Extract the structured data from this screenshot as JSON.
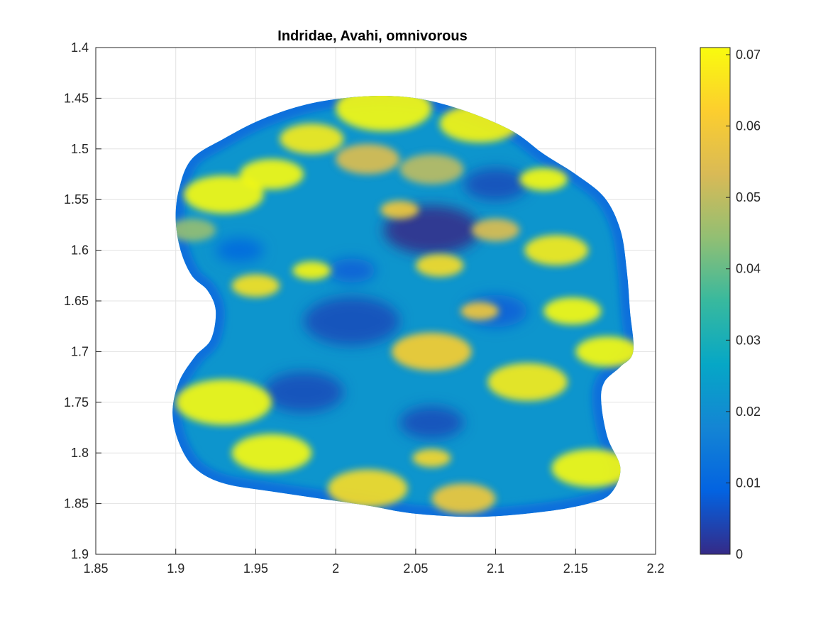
{
  "chart_data": {
    "type": "heatmap",
    "title": "Indridae, Avahi, omnivorous",
    "xlabel": "",
    "ylabel": "",
    "xlim": [
      1.85,
      2.2
    ],
    "ylim": [
      1.4,
      1.9
    ],
    "y_reversed": true,
    "grid": true,
    "x_ticks": [
      "1.85",
      "1.9",
      "1.95",
      "2",
      "2.05",
      "2.1",
      "2.15",
      "2.2"
    ],
    "y_ticks": [
      "1.4",
      "1.45",
      "1.5",
      "1.55",
      "1.6",
      "1.65",
      "1.7",
      "1.75",
      "1.8",
      "1.85",
      "1.9"
    ],
    "colorbar": {
      "limits": [
        0,
        0.071
      ],
      "ticks": [
        "0",
        "0.01",
        "0.02",
        "0.03",
        "0.04",
        "0.05",
        "0.06",
        "0.07"
      ],
      "colormap": "parula",
      "stops": [
        "#352a87",
        "#0363e1",
        "#1485d4",
        "#06a7c6",
        "#38b99e",
        "#92bf73",
        "#d9ba56",
        "#fcce2e",
        "#f9fb0e"
      ]
    },
    "surface_outline": [
      [
        1.9,
        1.57
      ],
      [
        1.902,
        1.54
      ],
      [
        1.91,
        1.51
      ],
      [
        1.93,
        1.49
      ],
      [
        1.955,
        1.47
      ],
      [
        1.985,
        1.455
      ],
      [
        2.02,
        1.448
      ],
      [
        2.05,
        1.45
      ],
      [
        2.08,
        1.462
      ],
      [
        2.11,
        1.482
      ],
      [
        2.13,
        1.505
      ],
      [
        2.15,
        1.525
      ],
      [
        2.168,
        1.548
      ],
      [
        2.178,
        1.58
      ],
      [
        2.182,
        1.62
      ],
      [
        2.184,
        1.66
      ],
      [
        2.186,
        1.7
      ],
      [
        2.178,
        1.715
      ],
      [
        2.168,
        1.73
      ],
      [
        2.166,
        1.75
      ],
      [
        2.17,
        1.785
      ],
      [
        2.178,
        1.815
      ],
      [
        2.172,
        1.84
      ],
      [
        2.158,
        1.85
      ],
      [
        2.13,
        1.858
      ],
      [
        2.09,
        1.863
      ],
      [
        2.05,
        1.86
      ],
      [
        2.02,
        1.852
      ],
      [
        1.99,
        1.845
      ],
      [
        1.96,
        1.838
      ],
      [
        1.93,
        1.83
      ],
      [
        1.912,
        1.815
      ],
      [
        1.902,
        1.79
      ],
      [
        1.898,
        1.76
      ],
      [
        1.902,
        1.73
      ],
      [
        1.912,
        1.705
      ],
      [
        1.922,
        1.688
      ],
      [
        1.925,
        1.66
      ],
      [
        1.92,
        1.64
      ],
      [
        1.91,
        1.625
      ],
      [
        1.903,
        1.6
      ]
    ],
    "hotspots": [
      {
        "x": 1.93,
        "y": 1.545,
        "v": 0.071,
        "r": 0.025
      },
      {
        "x": 1.96,
        "y": 1.525,
        "v": 0.071,
        "r": 0.02
      },
      {
        "x": 1.985,
        "y": 1.49,
        "v": 0.068,
        "r": 0.02
      },
      {
        "x": 2.03,
        "y": 1.46,
        "v": 0.071,
        "r": 0.03
      },
      {
        "x": 2.09,
        "y": 1.475,
        "v": 0.07,
        "r": 0.025
      },
      {
        "x": 2.13,
        "y": 1.53,
        "v": 0.071,
        "r": 0.015
      },
      {
        "x": 2.138,
        "y": 1.6,
        "v": 0.068,
        "r": 0.02
      },
      {
        "x": 2.148,
        "y": 1.66,
        "v": 0.071,
        "r": 0.018
      },
      {
        "x": 2.17,
        "y": 1.7,
        "v": 0.071,
        "r": 0.02
      },
      {
        "x": 1.93,
        "y": 1.75,
        "v": 0.071,
        "r": 0.03
      },
      {
        "x": 1.96,
        "y": 1.8,
        "v": 0.071,
        "r": 0.025
      },
      {
        "x": 2.02,
        "y": 1.835,
        "v": 0.065,
        "r": 0.025
      },
      {
        "x": 2.08,
        "y": 1.845,
        "v": 0.06,
        "r": 0.02
      },
      {
        "x": 2.16,
        "y": 1.815,
        "v": 0.071,
        "r": 0.025
      },
      {
        "x": 2.12,
        "y": 1.73,
        "v": 0.068,
        "r": 0.025
      },
      {
        "x": 2.06,
        "y": 1.7,
        "v": 0.062,
        "r": 0.025
      },
      {
        "x": 1.95,
        "y": 1.635,
        "v": 0.066,
        "r": 0.015
      },
      {
        "x": 1.985,
        "y": 1.62,
        "v": 0.07,
        "r": 0.012
      },
      {
        "x": 2.02,
        "y": 1.51,
        "v": 0.055,
        "r": 0.02
      },
      {
        "x": 2.06,
        "y": 1.52,
        "v": 0.05,
        "r": 0.02
      },
      {
        "x": 2.065,
        "y": 1.615,
        "v": 0.065,
        "r": 0.015
      },
      {
        "x": 2.04,
        "y": 1.56,
        "v": 0.06,
        "r": 0.012
      },
      {
        "x": 2.1,
        "y": 1.58,
        "v": 0.055,
        "r": 0.015
      },
      {
        "x": 2.06,
        "y": 1.805,
        "v": 0.064,
        "r": 0.012
      },
      {
        "x": 1.91,
        "y": 1.58,
        "v": 0.045,
        "r": 0.015
      },
      {
        "x": 2.09,
        "y": 1.66,
        "v": 0.06,
        "r": 0.012
      }
    ],
    "coldspots": [
      {
        "x": 2.06,
        "y": 1.58,
        "v": 0.0,
        "r": 0.03
      },
      {
        "x": 2.01,
        "y": 1.67,
        "v": 0.005,
        "r": 0.03
      },
      {
        "x": 2.1,
        "y": 1.66,
        "v": 0.008,
        "r": 0.02
      },
      {
        "x": 1.98,
        "y": 1.74,
        "v": 0.005,
        "r": 0.025
      },
      {
        "x": 2.06,
        "y": 1.77,
        "v": 0.005,
        "r": 0.02
      },
      {
        "x": 2.1,
        "y": 1.535,
        "v": 0.005,
        "r": 0.02
      },
      {
        "x": 1.94,
        "y": 1.6,
        "v": 0.01,
        "r": 0.015
      },
      {
        "x": 2.01,
        "y": 1.62,
        "v": 0.008,
        "r": 0.015
      }
    ]
  }
}
